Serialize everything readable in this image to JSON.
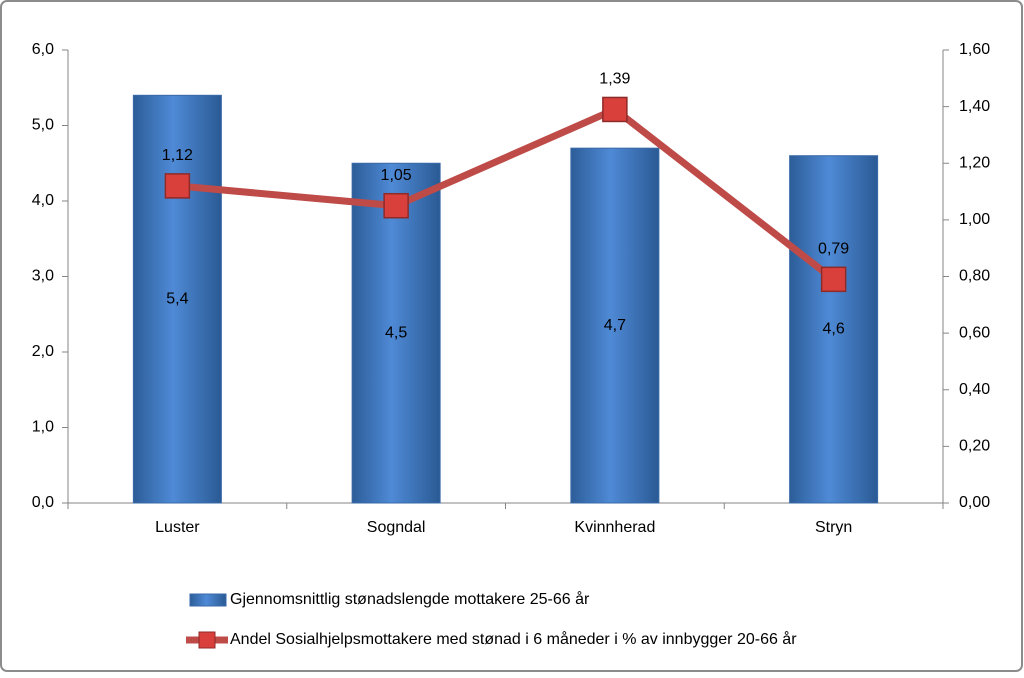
{
  "chart_data": {
    "type": "bar-line",
    "categories": [
      "Luster",
      "Sogndal",
      "Kvinnherad",
      "Stryn"
    ],
    "series": [
      {
        "name": "Gjennomsnittlig stønadslengde mottakere 25-66 år",
        "type": "bar",
        "color": "#4a7ebb",
        "axis": "y",
        "values": [
          5.4,
          4.5,
          4.7,
          4.6
        ],
        "value_labels": [
          "5,4",
          "4,5",
          "4,7",
          "4,6"
        ]
      },
      {
        "name": "Andel Sosialhjelpsmottakere med stønad i 6 måneder i % av innbygger 20-66 år",
        "type": "line",
        "color": "#be4b48",
        "axis": "y2",
        "values": [
          1.12,
          1.05,
          1.39,
          0.79
        ],
        "value_labels": [
          "1,12",
          "1,05",
          "1,39",
          "0,79"
        ]
      }
    ],
    "ylim": [
      0,
      6
    ],
    "yticks": [
      {
        "value": 0,
        "label": "0,0"
      },
      {
        "value": 1,
        "label": "1,0"
      },
      {
        "value": 2,
        "label": "2,0"
      },
      {
        "value": 3,
        "label": "3,0"
      },
      {
        "value": 4,
        "label": "4,0"
      },
      {
        "value": 5,
        "label": "5,0"
      },
      {
        "value": 6,
        "label": "6,0"
      }
    ],
    "y2lim": [
      0,
      1.6
    ],
    "y2ticks": [
      {
        "value": 0,
        "label": "0,00"
      },
      {
        "value": 0.2,
        "label": "0,20"
      },
      {
        "value": 0.4,
        "label": "0,40"
      },
      {
        "value": 0.6,
        "label": "0,60"
      },
      {
        "value": 0.8,
        "label": "0,80"
      },
      {
        "value": 1,
        "label": "1,00"
      },
      {
        "value": 1.2,
        "label": "1,20"
      },
      {
        "value": 1.4,
        "label": "1,40"
      },
      {
        "value": 1.6,
        "label": "1,60"
      }
    ],
    "legend": "bottom"
  }
}
